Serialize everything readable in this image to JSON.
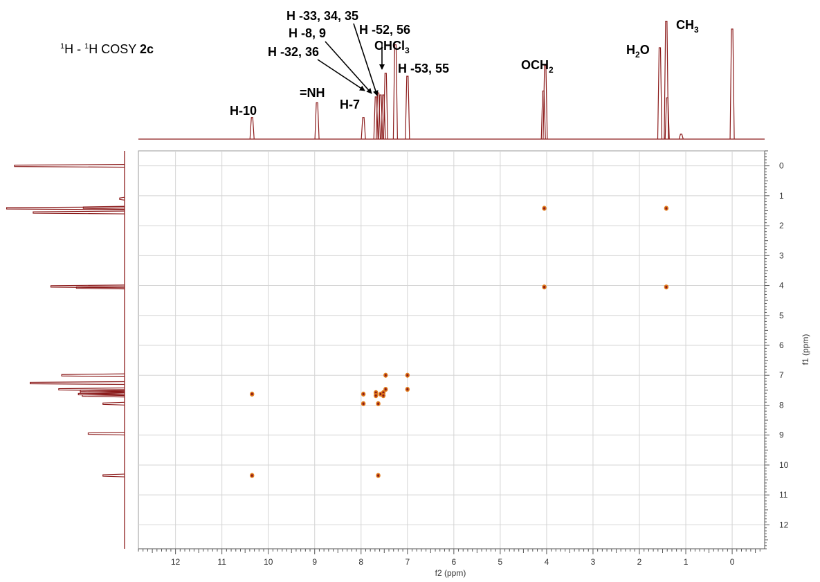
{
  "chart_data": {
    "type": "scatter",
    "title": "COSY",
    "title_prefix": "H - H",
    "title_sup": "1",
    "compound": "2c",
    "xlabel": "f2 (ppm)",
    "ylabel": "f1 (ppm)",
    "xlim": [
      12.8,
      -0.7
    ],
    "ylim": [
      -0.5,
      12.8
    ],
    "x_ticks": [
      "12",
      "11",
      "10",
      "9",
      "8",
      "7",
      "6",
      "5",
      "4",
      "3",
      "2",
      "1",
      "0"
    ],
    "y_ticks": [
      "0",
      "1",
      "2",
      "3",
      "4",
      "5",
      "6",
      "7",
      "8",
      "9",
      "10",
      "11",
      "12"
    ],
    "grid": true,
    "colors": {
      "spectrum": "#8b1a1a",
      "peak": "#e07a1a",
      "peak_core": "#8b1a1a",
      "grid": "#d4d4d4",
      "frame": "#9a9a9a"
    },
    "cross_peaks": [
      {
        "x": 4.05,
        "y": 1.42
      },
      {
        "x": 1.42,
        "y": 1.42
      },
      {
        "x": 4.05,
        "y": 4.05
      },
      {
        "x": 1.42,
        "y": 4.05
      },
      {
        "x": 7.47,
        "y": 7.0
      },
      {
        "x": 7.0,
        "y": 7.0
      },
      {
        "x": 7.47,
        "y": 7.47
      },
      {
        "x": 7.0,
        "y": 7.47
      },
      {
        "x": 10.35,
        "y": 7.63
      },
      {
        "x": 7.95,
        "y": 7.63
      },
      {
        "x": 7.68,
        "y": 7.58
      },
      {
        "x": 7.68,
        "y": 7.68
      },
      {
        "x": 7.58,
        "y": 7.63
      },
      {
        "x": 7.52,
        "y": 7.58
      },
      {
        "x": 7.52,
        "y": 7.68
      },
      {
        "x": 7.95,
        "y": 7.95
      },
      {
        "x": 7.63,
        "y": 7.95
      },
      {
        "x": 10.35,
        "y": 10.35
      },
      {
        "x": 7.63,
        "y": 10.35
      }
    ],
    "projection_peaks": [
      {
        "ppm": 10.35,
        "height": 0.22
      },
      {
        "ppm": 8.95,
        "height": 0.37
      },
      {
        "ppm": 7.95,
        "height": 0.22
      },
      {
        "ppm": 7.68,
        "height": 0.43
      },
      {
        "ppm": 7.63,
        "height": 0.47
      },
      {
        "ppm": 7.58,
        "height": 0.45
      },
      {
        "ppm": 7.52,
        "height": 0.45
      },
      {
        "ppm": 7.47,
        "height": 0.67
      },
      {
        "ppm": 7.26,
        "height": 0.96
      },
      {
        "ppm": 7.0,
        "height": 0.64
      },
      {
        "ppm": 4.07,
        "height": 0.49
      },
      {
        "ppm": 4.03,
        "height": 0.75
      },
      {
        "ppm": 1.56,
        "height": 0.93
      },
      {
        "ppm": 1.42,
        "height": 1.2
      },
      {
        "ppm": 1.4,
        "height": 0.42
      },
      {
        "ppm": 1.1,
        "height": 0.05
      },
      {
        "ppm": 0.0,
        "height": 1.12
      }
    ],
    "annotations": [
      {
        "main": "H-10"
      },
      {
        "main": "=NH"
      },
      {
        "main": "H-7"
      },
      {
        "main": "H -32, 36"
      },
      {
        "main": "H -8, 9"
      },
      {
        "main": "H -33, 34, 35"
      },
      {
        "main": "H -52, 56"
      },
      {
        "main": "CHCl",
        "sub": "3"
      },
      {
        "main": "H -53, 55"
      },
      {
        "main": "OCH",
        "sub": "2"
      },
      {
        "main": "H",
        "sub": "2",
        "tail": "O"
      },
      {
        "main": "CH",
        "sub": "3"
      }
    ]
  }
}
